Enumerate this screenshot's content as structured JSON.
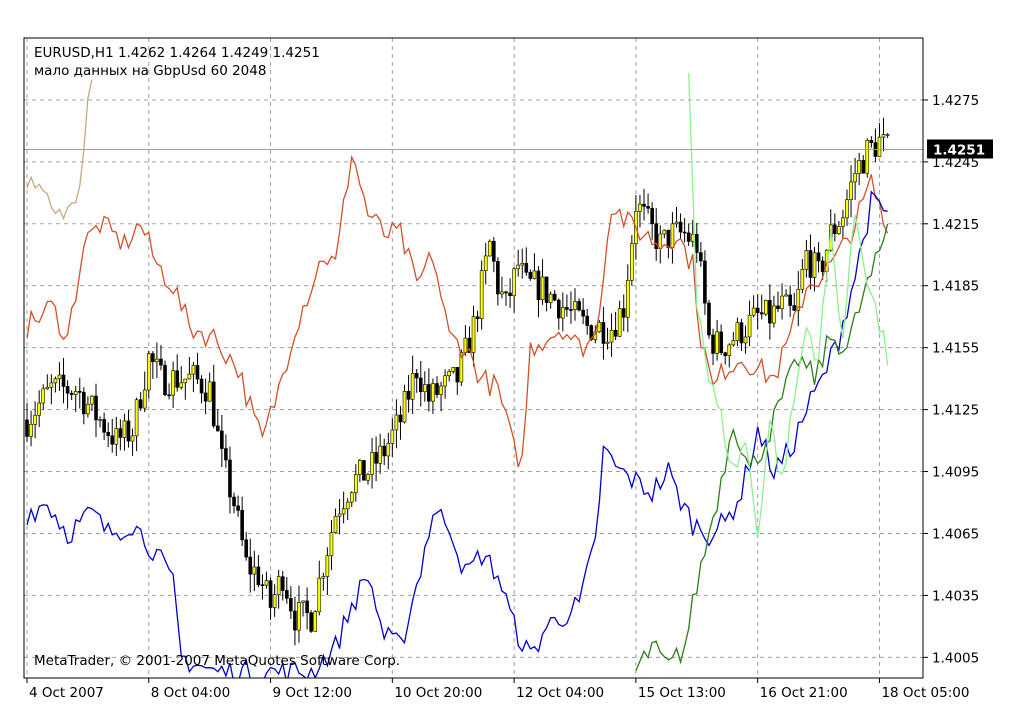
{
  "header": {
    "symbol_line": "EURUSD,H1  1.4262 1.4264 1.4249 1.4251",
    "warning_line": "мало данных на GbpUsd 60 2048"
  },
  "footer": {
    "copyright": "MetaTrader, © 2001-2007 MetaQuotes Software Corp."
  },
  "colors": {
    "background": "#ffffff",
    "grid": "#a0a0a0",
    "candle_bull": "#ffff00",
    "candle_bear": "#000000",
    "orange": "#d2502a",
    "blue": "#0000cc",
    "dark_green": "#2e7d1a",
    "light_green": "#90ee90",
    "tan": "#c8a880",
    "price_label_bg": "#000000",
    "price_label_fg": "#ffffff"
  },
  "chart_data": {
    "type": "line",
    "title": "EURUSD,H1  1.4262 1.4264 1.4249 1.4251",
    "xlabel": "",
    "ylabel": "",
    "ylim": [
      1.3995,
      1.4305
    ],
    "grid": true,
    "current_price": "1.4251",
    "y_ticks": [
      "1.4275",
      "1.4245",
      "1.4215",
      "1.4185",
      "1.4155",
      "1.4125",
      "1.4095",
      "1.4065",
      "1.4035",
      "1.4005"
    ],
    "x_ticks": [
      "4 Oct 2007",
      "8 Oct 04:00",
      "9 Oct 12:00",
      "10 Oct 20:00",
      "12 Oct 04:00",
      "15 Oct 13:00",
      "16 Oct 21:00",
      "18 Oct 05:00"
    ],
    "x_count": 220,
    "candles": {
      "name": "EURUSD,H1",
      "close_points": [
        [
          0,
          1.412
        ],
        [
          6,
          1.4135
        ],
        [
          12,
          1.4135
        ],
        [
          18,
          1.412
        ],
        [
          22,
          1.411
        ],
        [
          26,
          1.4115
        ],
        [
          30,
          1.415
        ],
        [
          33,
          1.414
        ],
        [
          37,
          1.414
        ],
        [
          41,
          1.414
        ],
        [
          45,
          1.4135
        ],
        [
          48,
          1.41
        ],
        [
          51,
          1.408
        ],
        [
          54,
          1.405
        ],
        [
          57,
          1.4045
        ],
        [
          60,
          1.403
        ],
        [
          63,
          1.4045
        ],
        [
          66,
          1.4025
        ],
        [
          70,
          1.4025
        ],
        [
          73,
          1.405
        ],
        [
          76,
          1.4075
        ],
        [
          80,
          1.409
        ],
        [
          84,
          1.4095
        ],
        [
          88,
          1.4105
        ],
        [
          92,
          1.412
        ],
        [
          96,
          1.4145
        ],
        [
          99,
          1.413
        ],
        [
          102,
          1.4135
        ],
        [
          106,
          1.414
        ],
        [
          110,
          1.4165
        ],
        [
          114,
          1.4205
        ],
        [
          116,
          1.4185
        ],
        [
          118,
          1.4175
        ],
        [
          121,
          1.4195
        ],
        [
          123,
          1.4185
        ],
        [
          126,
          1.4185
        ],
        [
          129,
          1.418
        ],
        [
          132,
          1.4175
        ],
        [
          135,
          1.417
        ],
        [
          138,
          1.4165
        ],
        [
          141,
          1.4165
        ],
        [
          144,
          1.4165
        ],
        [
          147,
          1.4175
        ],
        [
          150,
          1.4225
        ],
        [
          153,
          1.4215
        ],
        [
          156,
          1.4205
        ],
        [
          159,
          1.421
        ],
        [
          162,
          1.421
        ],
        [
          165,
          1.4205
        ],
        [
          168,
          1.416
        ],
        [
          171,
          1.4155
        ],
        [
          174,
          1.416
        ],
        [
          177,
          1.4165
        ],
        [
          180,
          1.417
        ],
        [
          183,
          1.417
        ],
        [
          186,
          1.4175
        ],
        [
          189,
          1.417
        ],
        [
          192,
          1.42
        ],
        [
          195,
          1.419
        ],
        [
          198,
          1.421
        ],
        [
          201,
          1.422
        ],
        [
          204,
          1.424
        ],
        [
          207,
          1.425
        ],
        [
          210,
          1.4255
        ],
        [
          212,
          1.4251
        ]
      ]
    },
    "series": [
      {
        "key": "orange",
        "points": [
          [
            0,
            1.4165
          ],
          [
            6,
            1.4175
          ],
          [
            10,
            1.416
          ],
          [
            14,
            1.4205
          ],
          [
            18,
            1.4215
          ],
          [
            24,
            1.4205
          ],
          [
            28,
            1.4215
          ],
          [
            32,
            1.4195
          ],
          [
            36,
            1.4185
          ],
          [
            40,
            1.4165
          ],
          [
            46,
            1.416
          ],
          [
            52,
            1.4145
          ],
          [
            56,
            1.412
          ],
          [
            58,
            1.411
          ],
          [
            62,
            1.4135
          ],
          [
            66,
            1.4165
          ],
          [
            70,
            1.4185
          ],
          [
            73,
            1.42
          ],
          [
            76,
            1.4195
          ],
          [
            80,
            1.425
          ],
          [
            84,
            1.422
          ],
          [
            88,
            1.421
          ],
          [
            92,
            1.421
          ],
          [
            96,
            1.4185
          ],
          [
            100,
            1.42
          ],
          [
            104,
            1.416
          ],
          [
            108,
            1.4155
          ],
          [
            112,
            1.414
          ],
          [
            116,
            1.4135
          ],
          [
            120,
            1.4105
          ],
          [
            122,
            1.41
          ],
          [
            124,
            1.4155
          ],
          [
            128,
            1.416
          ],
          [
            132,
            1.4165
          ],
          [
            136,
            1.4155
          ],
          [
            140,
            1.416
          ],
          [
            144,
            1.4225
          ],
          [
            148,
            1.4215
          ],
          [
            152,
            1.421
          ],
          [
            156,
            1.4205
          ],
          [
            160,
            1.421
          ],
          [
            164,
            1.4195
          ],
          [
            166,
            1.416
          ],
          [
            169,
            1.4135
          ],
          [
            172,
            1.4145
          ],
          [
            176,
            1.415
          ],
          [
            180,
            1.4145
          ],
          [
            184,
            1.414
          ],
          [
            188,
            1.416
          ],
          [
            192,
            1.4185
          ],
          [
            196,
            1.419
          ],
          [
            200,
            1.42
          ],
          [
            204,
            1.4215
          ],
          [
            208,
            1.4235
          ],
          [
            212,
            1.421
          ]
        ]
      },
      {
        "key": "blue",
        "points": [
          [
            0,
            1.4075
          ],
          [
            5,
            1.408
          ],
          [
            10,
            1.4065
          ],
          [
            16,
            1.4075
          ],
          [
            20,
            1.4065
          ],
          [
            26,
            1.407
          ],
          [
            32,
            1.4055
          ],
          [
            36,
            1.404
          ],
          [
            38,
            1.4005
          ],
          [
            46,
            1.3998
          ],
          [
            60,
            1.3998
          ],
          [
            70,
            1.3998
          ],
          [
            76,
            1.401
          ],
          [
            80,
            1.403
          ],
          [
            84,
            1.4045
          ],
          [
            88,
            1.4015
          ],
          [
            92,
            1.401
          ],
          [
            96,
            1.404
          ],
          [
            100,
            1.4075
          ],
          [
            104,
            1.407
          ],
          [
            108,
            1.4045
          ],
          [
            112,
            1.4055
          ],
          [
            116,
            1.4045
          ],
          [
            120,
            1.402
          ],
          [
            124,
            1.4005
          ],
          [
            128,
            1.402
          ],
          [
            132,
            1.4025
          ],
          [
            136,
            1.403
          ],
          [
            140,
            1.406
          ],
          [
            142,
            1.4105
          ],
          [
            146,
            1.4095
          ],
          [
            150,
            1.409
          ],
          [
            154,
            1.4085
          ],
          [
            158,
            1.4095
          ],
          [
            160,
            1.4085
          ],
          [
            164,
            1.407
          ],
          [
            168,
            1.4065
          ],
          [
            172,
            1.407
          ],
          [
            176,
            1.4085
          ],
          [
            180,
            1.4115
          ],
          [
            184,
            1.4095
          ],
          [
            188,
            1.4105
          ],
          [
            192,
            1.4125
          ],
          [
            196,
            1.414
          ],
          [
            200,
            1.416
          ],
          [
            204,
            1.419
          ],
          [
            208,
            1.4225
          ],
          [
            212,
            1.422
          ]
        ]
      },
      {
        "key": "dark_green",
        "points": [
          [
            150,
            1.3998
          ],
          [
            154,
            1.401
          ],
          [
            158,
            1.4
          ],
          [
            162,
            1.401
          ],
          [
            165,
            1.404
          ],
          [
            168,
            1.4065
          ],
          [
            171,
            1.409
          ],
          [
            174,
            1.412
          ],
          [
            178,
            1.4095
          ],
          [
            182,
            1.411
          ],
          [
            186,
            1.413
          ],
          [
            190,
            1.415
          ],
          [
            194,
            1.414
          ],
          [
            198,
            1.416
          ],
          [
            202,
            1.4155
          ],
          [
            206,
            1.418
          ],
          [
            210,
            1.42
          ],
          [
            212,
            1.4215
          ]
        ]
      },
      {
        "key": "light_green",
        "points": [
          [
            163,
            1.429
          ],
          [
            165,
            1.418
          ],
          [
            168,
            1.414
          ],
          [
            171,
            1.412
          ],
          [
            174,
            1.4095
          ],
          [
            177,
            1.411
          ],
          [
            180,
            1.4065
          ],
          [
            183,
            1.412
          ],
          [
            186,
            1.409
          ],
          [
            189,
            1.413
          ],
          [
            192,
            1.4165
          ],
          [
            195,
            1.415
          ],
          [
            198,
            1.421
          ],
          [
            201,
            1.416
          ],
          [
            204,
            1.422
          ],
          [
            207,
            1.419
          ],
          [
            210,
            1.4165
          ],
          [
            212,
            1.415
          ]
        ]
      },
      {
        "key": "tan",
        "points": [
          [
            0,
            1.4235
          ],
          [
            5,
            1.4225
          ],
          [
            10,
            1.422
          ],
          [
            13,
            1.423
          ],
          [
            16,
            1.429
          ]
        ]
      }
    ]
  }
}
